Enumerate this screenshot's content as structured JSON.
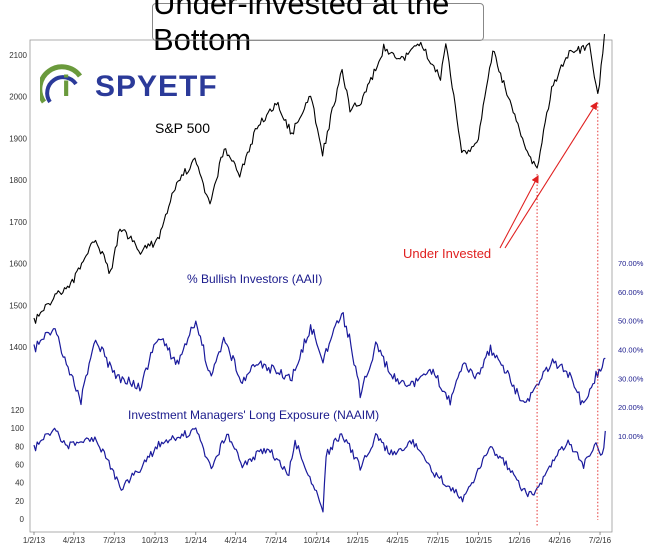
{
  "title": "Under-invested at the Bottom",
  "logo": {
    "prefix": "i",
    "text": "SPYETF"
  },
  "chart_data": [
    {
      "type": "line",
      "name": "S&P 500",
      "label": "S&P 500",
      "x_ticks": [
        "1/2/13",
        "4/2/13",
        "7/2/13",
        "10/2/13",
        "1/2/14",
        "4/2/14",
        "7/2/14",
        "10/2/14",
        "1/2/15",
        "4/2/15",
        "7/2/15",
        "10/2/15",
        "1/2/16",
        "4/2/16",
        "7/2/16"
      ],
      "y_ticks": [
        1400,
        1500,
        1600,
        1700,
        1800,
        1900,
        2000,
        2100
      ],
      "ylim": [
        1360,
        2140
      ],
      "x": [
        "2013-01-02",
        "2013-02-15",
        "2013-04-02",
        "2013-05-21",
        "2013-06-24",
        "2013-07-15",
        "2013-08-30",
        "2013-10-08",
        "2013-11-20",
        "2013-12-31",
        "2014-02-03",
        "2014-03-07",
        "2014-04-11",
        "2014-05-20",
        "2014-07-03",
        "2014-08-07",
        "2014-09-18",
        "2014-10-15",
        "2014-11-28",
        "2014-12-16",
        "2015-01-14",
        "2015-03-02",
        "2015-04-15",
        "2015-05-21",
        "2015-07-08",
        "2015-07-20",
        "2015-08-25",
        "2015-09-28",
        "2015-11-03",
        "2016-01-20",
        "2016-02-11",
        "2016-03-15",
        "2016-04-20",
        "2016-06-08",
        "2016-06-27",
        "2016-07-12"
      ],
      "values": [
        1460,
        1520,
        1560,
        1660,
        1575,
        1690,
        1630,
        1655,
        1795,
        1848,
        1742,
        1878,
        1815,
        1925,
        1985,
        1910,
        2010,
        1862,
        2068,
        1973,
        1992,
        2117,
        2090,
        2131,
        2046,
        2128,
        1867,
        1882,
        2110,
        1860,
        1829,
        2020,
        2102,
        2120,
        2000,
        2150
      ]
    },
    {
      "type": "line",
      "name": "% Bullish Investors (AAII)",
      "label": "% Bullish Investors (AAII)",
      "y_ticks": [
        "10.00%",
        "20.00%",
        "30.00%",
        "40.00%",
        "50.00%",
        "60.00%",
        "70.00%"
      ],
      "ylim": [
        0,
        75
      ],
      "x": [
        "2013-01-02",
        "2013-02-15",
        "2013-04-18",
        "2013-05-21",
        "2013-07-02",
        "2013-08-29",
        "2013-10-10",
        "2013-11-21",
        "2014-01-02",
        "2014-02-06",
        "2014-03-06",
        "2014-04-17",
        "2014-05-22",
        "2014-07-03",
        "2014-08-07",
        "2014-09-18",
        "2014-10-16",
        "2014-11-27",
        "2014-12-18",
        "2015-01-08",
        "2015-02-12",
        "2015-03-26",
        "2015-05-07",
        "2015-06-18",
        "2015-07-30",
        "2015-08-27",
        "2015-09-24",
        "2015-10-29",
        "2015-12-03",
        "2016-01-14",
        "2016-02-11",
        "2016-03-17",
        "2016-04-21",
        "2016-05-26",
        "2016-06-23",
        "2016-07-14"
      ],
      "values": [
        40,
        48,
        22,
        44,
        31,
        27,
        45,
        35,
        50,
        30,
        44,
        29,
        36,
        32,
        30,
        48,
        37,
        53,
        42,
        25,
        41,
        30,
        28,
        33,
        22,
        35,
        30,
        40,
        32,
        20,
        28,
        36,
        32,
        20,
        31,
        37
      ]
    },
    {
      "type": "line",
      "name": "Investment Managers' Long Exposure (NAAIM)",
      "label": "Investment Managers' Long Exposure (NAAIM)",
      "y_ticks": [
        0,
        20,
        40,
        60,
        80,
        100,
        120
      ],
      "ylim": [
        0,
        120
      ],
      "x": [
        "2013-01-02",
        "2013-02-14",
        "2013-03-21",
        "2013-05-23",
        "2013-06-20",
        "2013-07-18",
        "2013-08-29",
        "2013-10-10",
        "2013-11-21",
        "2014-01-02",
        "2014-02-06",
        "2014-03-13",
        "2014-04-17",
        "2014-06-12",
        "2014-07-31",
        "2014-08-14",
        "2014-10-16",
        "2014-10-23",
        "2014-11-27",
        "2015-01-08",
        "2015-02-12",
        "2015-03-19",
        "2015-05-07",
        "2015-06-25",
        "2015-08-27",
        "2015-09-24",
        "2015-10-29",
        "2015-12-03",
        "2016-01-21",
        "2016-02-11",
        "2016-03-17",
        "2016-04-21",
        "2016-05-26",
        "2016-06-23",
        "2016-07-07",
        "2016-07-14"
      ],
      "values": [
        77,
        100,
        80,
        88,
        60,
        35,
        55,
        82,
        90,
        98,
        55,
        95,
        60,
        78,
        50,
        85,
        12,
        70,
        95,
        58,
        90,
        72,
        85,
        50,
        22,
        45,
        80,
        60,
        25,
        30,
        65,
        85,
        60,
        80,
        68,
        97
      ]
    }
  ],
  "annotation": "Under Invested"
}
